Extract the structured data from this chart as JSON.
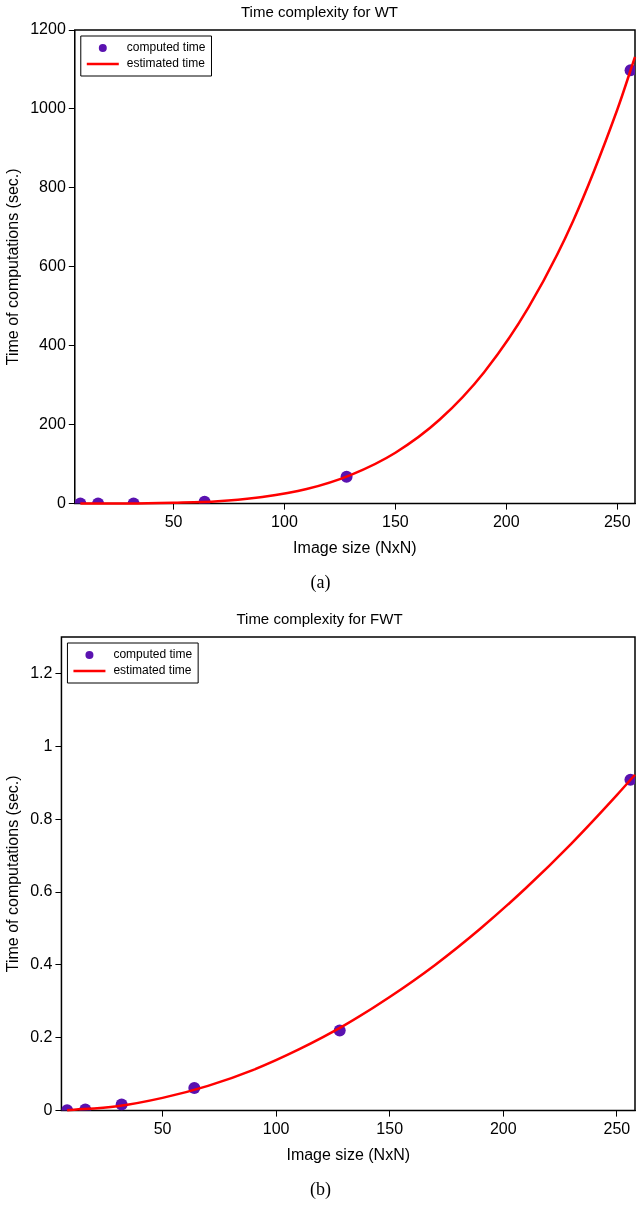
{
  "chart_data": [
    {
      "type": "scatter",
      "title": "Time complexity for WT",
      "xlabel": "Image size (NxN)",
      "ylabel": "Time of computations (sec.)",
      "annotations": [
        "(a)"
      ],
      "xlim": [
        5.5,
        258
      ],
      "xticks": [
        50,
        100,
        150,
        200,
        250
      ],
      "ylim": [
        0,
        1200
      ],
      "yticks": [
        0,
        200,
        400,
        600,
        800,
        1000,
        1200
      ],
      "grid": false,
      "legend": "top left",
      "series": [
        {
          "name": "computed time",
          "type": "scatter",
          "marker": "circle",
          "color": "#5a12b0",
          "x": [
            8,
            16,
            32,
            64,
            128,
            256
          ],
          "values": [
            0,
            0,
            0,
            5,
            68,
            1098
          ]
        },
        {
          "name": "estimated time",
          "type": "line",
          "marker": "none",
          "line_style": "solid",
          "color": "#ff0000",
          "x": [
            8,
            30,
            50,
            70,
            90,
            110,
            130,
            150,
            170,
            190,
            210,
            230,
            250,
            258
          ],
          "values": [
            0,
            0,
            2,
            6,
            17,
            37,
            73,
            129,
            213,
            333,
            497,
            715,
            998,
            1132
          ]
        }
      ]
    },
    {
      "type": "scatter",
      "title": "Time complexity for FWT",
      "xlabel": "Image size (NxN)",
      "ylabel": "Time of computations (sec.)",
      "annotations": [
        "(b)"
      ],
      "xlim": [
        5.5,
        258
      ],
      "xticks": [
        50,
        100,
        150,
        200,
        250
      ],
      "ylim": [
        0,
        1.3
      ],
      "yticks": [
        0,
        0.2,
        0.4,
        0.6,
        0.8,
        1,
        1.2
      ],
      "grid": false,
      "legend": "top left",
      "series": [
        {
          "name": "computed time",
          "type": "scatter",
          "marker": "circle",
          "color": "#5a12b0",
          "x": [
            8,
            16,
            32,
            64,
            128,
            256
          ],
          "values": [
            0.001,
            0.003,
            0.017,
            0.062,
            0.22,
            0.908
          ]
        },
        {
          "name": "estimated time",
          "type": "line",
          "marker": "none",
          "line_style": "solid",
          "color": "#ff0000",
          "x": [
            8,
            30,
            50,
            70,
            90,
            110,
            130,
            150,
            170,
            190,
            210,
            230,
            250,
            258
          ],
          "values": [
            0.001,
            0.012,
            0.035,
            0.068,
            0.112,
            0.168,
            0.234,
            0.312,
            0.4,
            0.5,
            0.611,
            0.733,
            0.866,
            0.922
          ]
        }
      ]
    }
  ]
}
